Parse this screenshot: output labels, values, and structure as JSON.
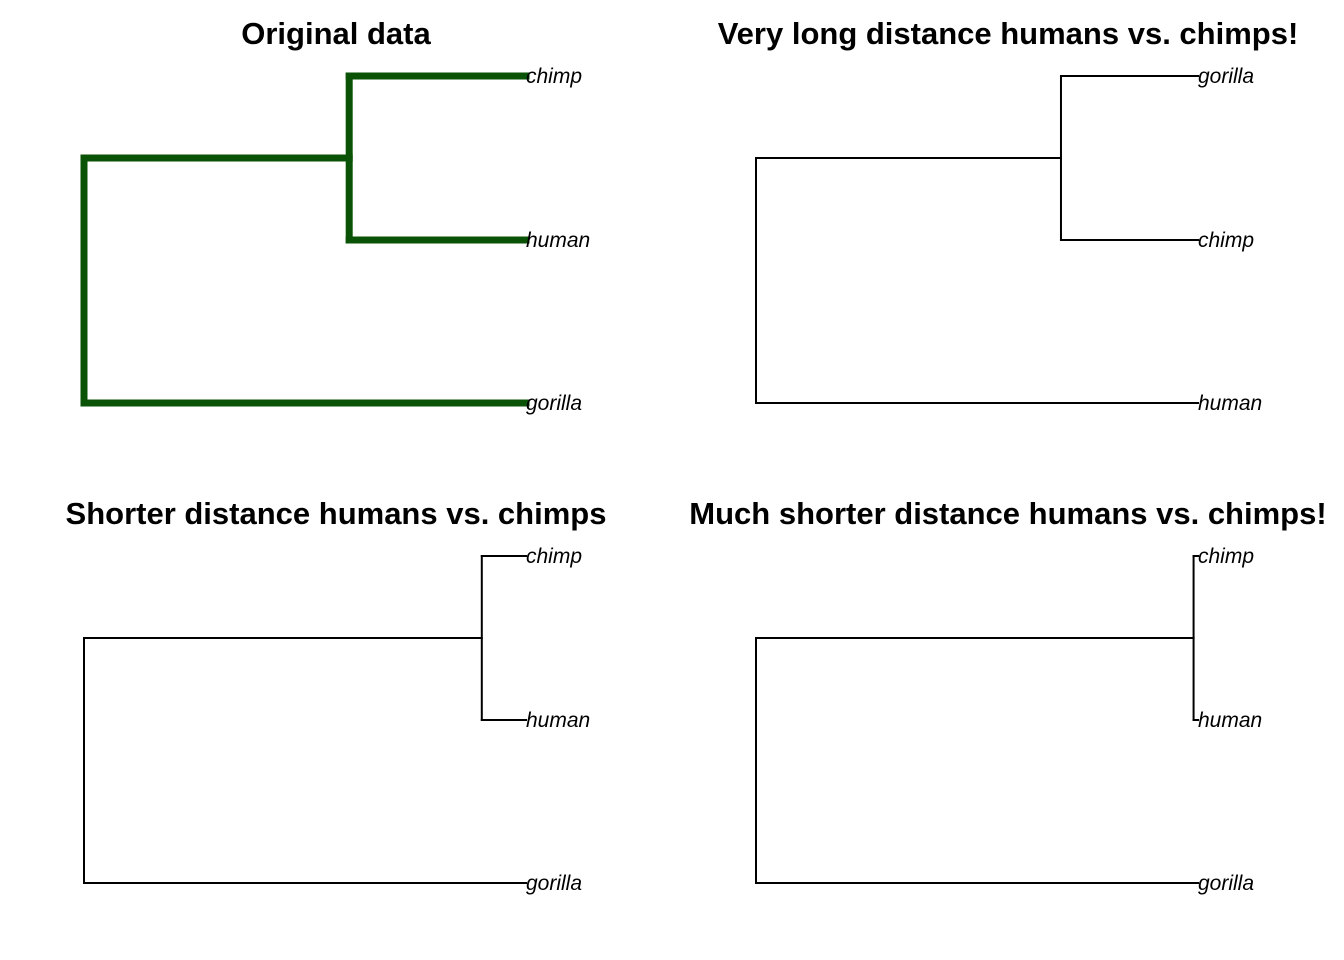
{
  "figure": {
    "background": "#ffffff",
    "panels": [
      {
        "title": "Original data",
        "edge_color": "#0a5205",
        "edge_style": "thick",
        "tips": [
          "chimp",
          "human",
          "gorilla"
        ],
        "internal_node_depth": 0.6,
        "tip_depth": 1.0
      },
      {
        "title": "Very long distance humans vs. chimps!",
        "edge_color": "#000000",
        "edge_style": "thin",
        "tips": [
          "gorilla",
          "chimp",
          "human"
        ],
        "internal_node_depth": 0.69,
        "tip_depth": 1.0
      },
      {
        "title": "Shorter distance humans vs. chimps",
        "edge_color": "#000000",
        "edge_style": "thin",
        "tips": [
          "chimp",
          "human",
          "gorilla"
        ],
        "internal_node_depth": 0.9,
        "tip_depth": 1.0
      },
      {
        "title": "Much shorter distance humans vs. chimps!",
        "edge_color": "#000000",
        "edge_style": "thin",
        "tips": [
          "chimp",
          "human",
          "gorilla"
        ],
        "internal_node_depth": 0.99,
        "tip_depth": 1.0
      }
    ]
  }
}
